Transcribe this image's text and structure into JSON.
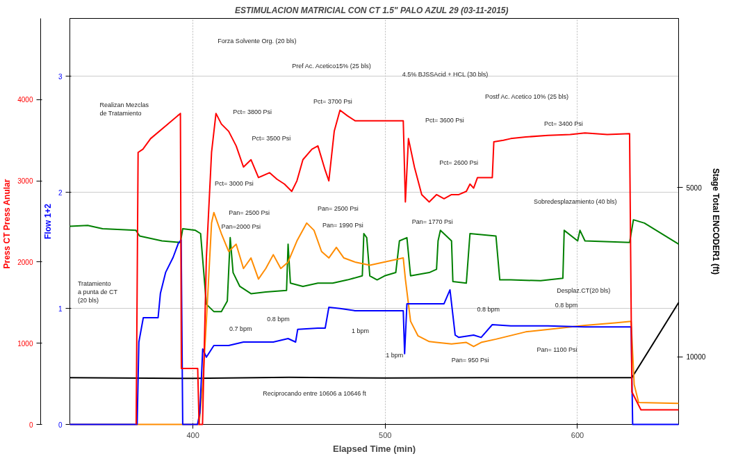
{
  "chart_data": {
    "type": "line",
    "title": "ESTIMULACION MATRICIAL CON CT 1.5\"   PALO AZUL 29 (03-11-2015)",
    "xlabel": "Elapsed Time (min)",
    "ylabel": "Press CT   Press Anular",
    "y2label": "Flow 1+2",
    "y3label": "Stage Total ENCODER1 (ft)",
    "xlim": [
      336,
      652.6
    ],
    "xticks": [
      400,
      500,
      600
    ],
    "ylim": [
      0,
      5000
    ],
    "yticks": [
      0,
      1000,
      2000,
      3000,
      4000
    ],
    "y2lim": [
      0,
      3.5
    ],
    "y2ticks": [
      0,
      1,
      2,
      3
    ],
    "y3lim": [
      12000,
      0
    ],
    "y3ticks": [
      5000,
      10000
    ],
    "grid": true,
    "line_style": "solid",
    "series": [
      {
        "color": "#008000",
        "x": [
          336,
          345.3,
          353,
          370.4,
          372.3,
          383.9,
          393.5,
          394.7,
          401.3,
          404,
          407,
          410.9,
          414.8,
          417.9,
          419.4,
          420.9,
          424.4,
          430.2,
          437.9,
          448.7,
          449.5,
          450.7,
          457.2,
          465,
          472.7,
          480.4,
          488.1,
          488.9,
          490.4,
          492,
          495.8,
          499.7,
          505.5,
          507.4,
          511.3,
          513.2,
          522.9,
          526.7,
          527.5,
          528.7,
          534.5,
          535.2,
          542.2,
          544.1,
          557.6,
          559.6,
          565.3,
          580.8,
          592.4,
          593.1,
          600.1,
          601.3,
          603.9,
          627.1,
          629.1,
          634.8,
          652.6
        ],
        "values": [
          2440,
          2450,
          2410,
          2390,
          2320,
          2260,
          2240,
          2410,
          2390,
          2350,
          1480,
          1390,
          1390,
          1520,
          2300,
          1870,
          1700,
          1610,
          1630,
          1650,
          2220,
          1740,
          1700,
          1740,
          1740,
          1780,
          1830,
          2350,
          2300,
          1830,
          1780,
          1830,
          1870,
          2260,
          2300,
          1830,
          1870,
          1910,
          2260,
          2390,
          2260,
          1760,
          1740,
          2350,
          2320,
          1780,
          1780,
          1770,
          1800,
          2390,
          2260,
          2390,
          2260,
          2240,
          2520,
          2480,
          2220
        ]
      },
      {
        "color": "#000000",
        "axis": "y3",
        "x": [
          336,
          400,
          450,
          500,
          550,
          600,
          628.3,
          652.6
        ],
        "values": [
          10620,
          10640,
          10610,
          10630,
          10620,
          10620,
          10620,
          8400
        ]
      },
      {
        "color": "#ff8c00",
        "x": [
          336,
          403.2,
          405.1,
          407,
          409.7,
          410.9,
          414.8,
          418.6,
          422.5,
          426.3,
          430.2,
          434.1,
          437.9,
          441.8,
          445.7,
          449.5,
          454.1,
          459.2,
          463,
          466.9,
          470.7,
          474.6,
          478.5,
          484.3,
          492,
          509.4,
          510.5,
          513.2,
          517.1,
          522.9,
          526.7,
          534.5,
          542.2,
          546,
          549.9,
          557.6,
          573.1,
          588.5,
          603.9,
          619.4,
          627.9,
          629.5,
          631.8,
          652.6
        ],
        "values": [
          0,
          0,
          490,
          1270,
          2480,
          2610,
          2350,
          2130,
          2220,
          1920,
          2050,
          1790,
          1920,
          2090,
          1920,
          2000,
          2260,
          2480,
          2390,
          2130,
          2050,
          2180,
          2050,
          2000,
          1960,
          2050,
          1790,
          1270,
          1090,
          1020,
          1010,
          990,
          1010,
          960,
          1010,
          1050,
          1140,
          1180,
          1220,
          1250,
          1270,
          490,
          270,
          260
        ]
      },
      {
        "color": "#0000ff",
        "axis": "y2",
        "x": [
          336,
          371,
          371.9,
          374.2,
          381.9,
          383.1,
          385.8,
          389.7,
          392.4,
          393.9,
          394.7,
          402.4,
          403.6,
          405.1,
          407,
          410.9,
          418.6,
          426.3,
          434.1,
          441.8,
          449.5,
          453.4,
          454.5,
          465,
          468.8,
          470.7,
          476.5,
          484.3,
          492,
          509.4,
          510.1,
          511.3,
          526.7,
          530.6,
          533.7,
          536.4,
          538.3,
          546,
          549.9,
          555.7,
          565.3,
          584.6,
          603.9,
          627.9,
          628.7,
          652.6
        ],
        "values": [
          0,
          0,
          0.71,
          0.92,
          0.92,
          1.13,
          1.31,
          1.44,
          1.56,
          1.59,
          0,
          0,
          0.1,
          0.65,
          0.58,
          0.68,
          0.68,
          0.71,
          0.71,
          0.71,
          0.74,
          0.71,
          0.82,
          0.83,
          0.83,
          1.01,
          1.0,
          0.98,
          0.98,
          0.98,
          0.61,
          1.04,
          1.04,
          1.04,
          1.16,
          0.77,
          0.75,
          0.77,
          0.75,
          0.86,
          0.85,
          0.85,
          0.84,
          0.84,
          0,
          0
        ]
      },
      {
        "color": "#ff0000",
        "x": [
          370.5,
          371.5,
          374,
          378,
          386,
          393.5,
          394,
          402.5,
          403.2,
          405,
          407,
          409.7,
          412,
          414.8,
          418.6,
          422.5,
          426.3,
          430.2,
          434.1,
          439.9,
          443.7,
          447.6,
          451.4,
          454.1,
          457.2,
          461.9,
          465,
          468.8,
          470.7,
          473.5,
          476.5,
          480.4,
          484.3,
          488.1,
          509.4,
          510.5,
          512.1,
          515.2,
          519,
          522.9,
          526.7,
          530.6,
          534.5,
          538.3,
          542.2,
          544.1,
          546,
          548,
          551.8,
          555.7,
          556.5,
          561.5,
          565.3,
          573.1,
          584.6,
          596.2,
          603.9,
          615.5,
          627.1,
          628.3,
          633,
          652.6
        ],
        "values": [
          0,
          3350,
          3390,
          3520,
          3680,
          3830,
          690,
          690,
          0,
          0,
          2050,
          3350,
          3830,
          3700,
          3610,
          3430,
          3170,
          3260,
          3040,
          3100,
          3020,
          2960,
          2870,
          3000,
          3260,
          3390,
          3430,
          3130,
          3000,
          3610,
          3870,
          3800,
          3740,
          3740,
          3740,
          2740,
          3520,
          3170,
          2830,
          2740,
          2830,
          2780,
          2830,
          2830,
          2870,
          2960,
          2910,
          3040,
          3040,
          3040,
          3480,
          3500,
          3520,
          3540,
          3560,
          3570,
          3590,
          3570,
          3580,
          400,
          180,
          180
        ]
      }
    ],
    "annotations": [
      "Realizan Mezclas\nde Tratamiento",
      "Forza Solvente Org. (20 bls)",
      "Pref Ac. Acetico15% (25 bls)",
      "4.5% BJSSAcid + HCL (30 bls)",
      "Postf Ac. Acetico 10% (25 bls)",
      "Sobredesplazamiento (40 bls)",
      "Tratamiento\na punta de CT\n(20 bls)",
      "Reciprocando entre 10606 a 10646 ft",
      "Desplaz.CT(20 bls)",
      "Pct= 3800 Psi",
      "Pct= 3500 Psi",
      "Pct= 3000 Psi",
      "Pct= 3700 Psi",
      "Pct= 3600 Psi",
      "Pct= 2600 Psi",
      "Pct= 3400 Psi",
      "Pan= 2500 Psi",
      "Pan=2000 Psi",
      "Pan= 2500 Psi",
      "Pan= 1990 Psi",
      "Pan= 1770 Psi",
      "Pan= 950 Psi",
      "Pan= 1100 Psi",
      "0.7 bpm",
      "0.8 bpm",
      "1 bpm",
      "1 bpm",
      "0.8 bpm",
      "0.8 bpm"
    ]
  }
}
